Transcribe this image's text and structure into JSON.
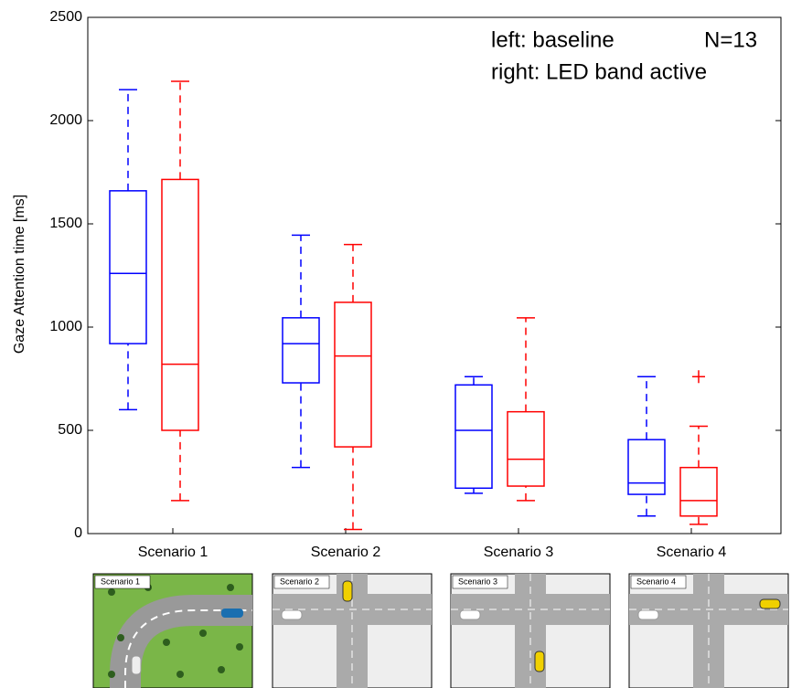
{
  "chart_data": {
    "type": "box",
    "y_label": "Gaze Attention time [ms]",
    "annotations": [
      "left: baseline",
      "N=13",
      "right: LED band active"
    ],
    "categories": [
      "Scenario 1",
      "Scenario 2",
      "Scenario 3",
      "Scenario 4"
    ],
    "ylim": [
      0,
      2500
    ],
    "yticks": [
      0,
      500,
      1000,
      1500,
      2000,
      2500
    ],
    "series": [
      {
        "color": "#0000ff",
        "min": [
          600,
          320,
          195,
          85
        ],
        "q1": [
          920,
          730,
          220,
          190
        ],
        "median": [
          1260,
          920,
          500,
          245
        ],
        "q3": [
          1660,
          1045,
          720,
          455
        ],
        "max": [
          2150,
          1445,
          760,
          760
        ],
        "outliers": [
          [],
          [],
          [],
          []
        ]
      },
      {
        "color": "#ff0000",
        "min": [
          160,
          20,
          160,
          45
        ],
        "q1": [
          500,
          420,
          230,
          85
        ],
        "median": [
          820,
          860,
          360,
          160
        ],
        "q3": [
          1715,
          1120,
          590,
          320
        ],
        "max": [
          2190,
          1400,
          1045,
          520
        ],
        "outliers": [
          [],
          [],
          [],
          [
            760
          ]
        ]
      }
    ]
  }
}
